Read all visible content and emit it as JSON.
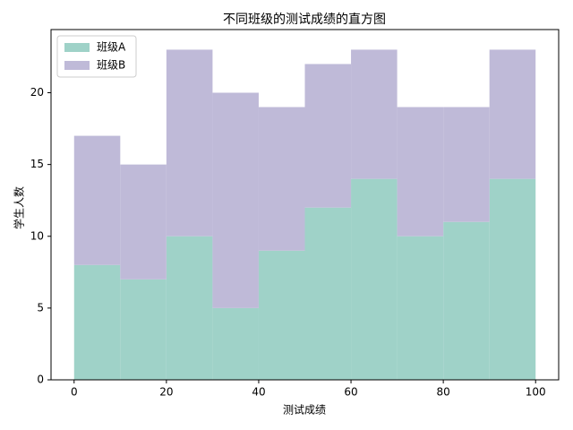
{
  "chart_data": {
    "type": "histogram",
    "stacked": true,
    "title": "不同班级的测试成绩的直方图",
    "xlabel": "测试成绩",
    "ylabel": "学生人数",
    "bins": [
      0,
      10,
      20,
      30,
      40,
      50,
      60,
      70,
      80,
      90,
      100
    ],
    "series": [
      {
        "name": "班级A",
        "color": "#9fd2c8",
        "values": [
          8,
          7,
          10,
          5,
          9,
          12,
          14,
          10,
          11,
          14
        ]
      },
      {
        "name": "班级B",
        "color": "#bfbad8",
        "values": [
          9,
          8,
          13,
          15,
          10,
          10,
          9,
          9,
          8,
          9
        ]
      }
    ],
    "xlim": [
      -5,
      105
    ],
    "ylim": [
      0,
      24.4
    ],
    "xticks": [
      0,
      20,
      40,
      60,
      80,
      100
    ],
    "yticks": [
      0,
      5,
      10,
      15,
      20
    ],
    "legend": "upper left"
  }
}
